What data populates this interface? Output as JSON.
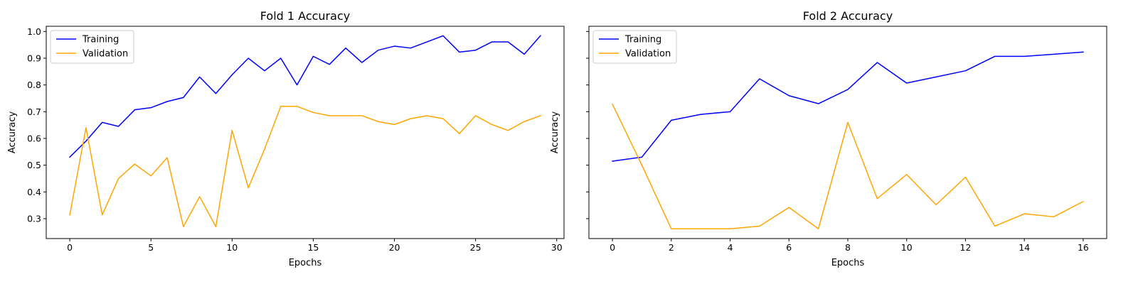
{
  "chart_data": [
    {
      "type": "line",
      "title": "Fold 1 Accuracy",
      "xlabel": "Epochs",
      "ylabel": "Accuracy",
      "xlim": [
        -1.45,
        30.45
      ],
      "ylim": [
        0.2255,
        1.0195
      ],
      "xticks": [
        0,
        5,
        10,
        15,
        20,
        25,
        30
      ],
      "yticks": [
        0.3,
        0.4,
        0.5,
        0.6,
        0.7,
        0.8,
        0.9,
        1.0
      ],
      "legend": "top-left",
      "x": [
        0,
        1,
        2,
        3,
        4,
        5,
        6,
        7,
        8,
        9,
        10,
        11,
        12,
        13,
        14,
        15,
        16,
        17,
        18,
        19,
        20,
        21,
        22,
        23,
        24,
        25,
        26,
        27,
        28,
        29
      ],
      "series": [
        {
          "name": "Training",
          "color": "#0000ff",
          "values": [
            0.53,
            0.59,
            0.66,
            0.645,
            0.707,
            0.715,
            0.738,
            0.753,
            0.83,
            0.768,
            0.838,
            0.9,
            0.853,
            0.9,
            0.8,
            0.907,
            0.877,
            0.938,
            0.884,
            0.93,
            0.945,
            0.938,
            0.961,
            0.984,
            0.923,
            0.93,
            0.961,
            0.961,
            0.915,
            0.984
          ]
        },
        {
          "name": "Validation",
          "color": "#ffa500",
          "values": [
            0.314,
            0.64,
            0.314,
            0.45,
            0.504,
            0.46,
            0.528,
            0.27,
            0.382,
            0.27,
            0.63,
            0.415,
            0.56,
            0.72,
            0.72,
            0.697,
            0.685,
            0.685,
            0.685,
            0.663,
            0.652,
            0.674,
            0.685,
            0.674,
            0.618,
            0.685,
            0.652,
            0.63,
            0.663,
            0.685
          ]
        }
      ]
    },
    {
      "type": "line",
      "title": "Fold 2 Accuracy",
      "xlabel": "Epochs",
      "ylabel": "Accuracy",
      "xlim": [
        -0.8,
        16.8
      ],
      "ylim": [
        0.2255,
        1.0195
      ],
      "xticks": [
        0,
        2,
        4,
        6,
        8,
        10,
        12,
        14,
        16
      ],
      "yticks": [
        0.3,
        0.4,
        0.5,
        0.6,
        0.7,
        0.8,
        0.9,
        1.0
      ],
      "legend": "top-left",
      "x": [
        0,
        1,
        2,
        3,
        4,
        5,
        6,
        7,
        8,
        9,
        10,
        11,
        12,
        13,
        14,
        15,
        16
      ],
      "series": [
        {
          "name": "Training",
          "color": "#0000ff",
          "values": [
            0.515,
            0.53,
            0.668,
            0.69,
            0.7,
            0.823,
            0.76,
            0.73,
            0.783,
            0.884,
            0.807,
            0.83,
            0.853,
            0.907,
            0.907,
            0.915,
            0.923
          ]
        },
        {
          "name": "Validation",
          "color": "#ffa500",
          "values": [
            0.728,
            0.5,
            0.262,
            0.262,
            0.262,
            0.272,
            0.342,
            0.262,
            0.66,
            0.375,
            0.465,
            0.352,
            0.455,
            0.272,
            0.318,
            0.307,
            0.364
          ]
        }
      ]
    }
  ]
}
